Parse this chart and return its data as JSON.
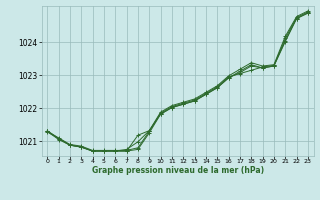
{
  "title": "Graphe pression niveau de la mer (hPa)",
  "bg_color": "#cce8e8",
  "grid_color": "#99bbbb",
  "line_color": "#2d6a2d",
  "marker_color": "#2d6a2d",
  "xlim": [
    -0.5,
    23.5
  ],
  "ylim": [
    1020.55,
    1025.1
  ],
  "yticks": [
    1021,
    1022,
    1023,
    1024
  ],
  "xticks": [
    0,
    1,
    2,
    3,
    4,
    5,
    6,
    7,
    8,
    9,
    10,
    11,
    12,
    13,
    14,
    15,
    16,
    17,
    18,
    19,
    20,
    21,
    22,
    23
  ],
  "series": [
    [
      1021.3,
      1021.1,
      1020.9,
      1020.85,
      1020.72,
      1020.72,
      1020.72,
      1020.72,
      1020.8,
      1021.3,
      1021.85,
      1022.05,
      1022.15,
      1022.25,
      1022.45,
      1022.65,
      1022.95,
      1023.05,
      1023.15,
      1023.25,
      1023.3,
      1024.05,
      1024.72,
      1024.88
    ],
    [
      1021.3,
      1021.05,
      1020.88,
      1020.82,
      1020.7,
      1020.7,
      1020.7,
      1020.7,
      1020.75,
      1021.25,
      1021.82,
      1022.02,
      1022.12,
      1022.22,
      1022.42,
      1022.62,
      1022.92,
      1023.12,
      1023.32,
      1023.22,
      1023.28,
      1024.12,
      1024.75,
      1024.92
    ],
    [
      1021.28,
      1021.08,
      1020.88,
      1020.82,
      1020.7,
      1020.7,
      1020.7,
      1020.7,
      1021.18,
      1021.32,
      1021.88,
      1022.08,
      1022.18,
      1022.28,
      1022.48,
      1022.68,
      1022.98,
      1023.18,
      1023.38,
      1023.28,
      1023.32,
      1024.18,
      1024.78,
      1024.95
    ],
    [
      1021.32,
      1021.08,
      1020.88,
      1020.82,
      1020.7,
      1020.7,
      1020.7,
      1020.75,
      1020.98,
      1021.32,
      1021.82,
      1022.02,
      1022.12,
      1022.22,
      1022.42,
      1022.62,
      1022.92,
      1023.08,
      1023.28,
      1023.22,
      1023.28,
      1024.02,
      1024.72,
      1024.9
    ]
  ]
}
